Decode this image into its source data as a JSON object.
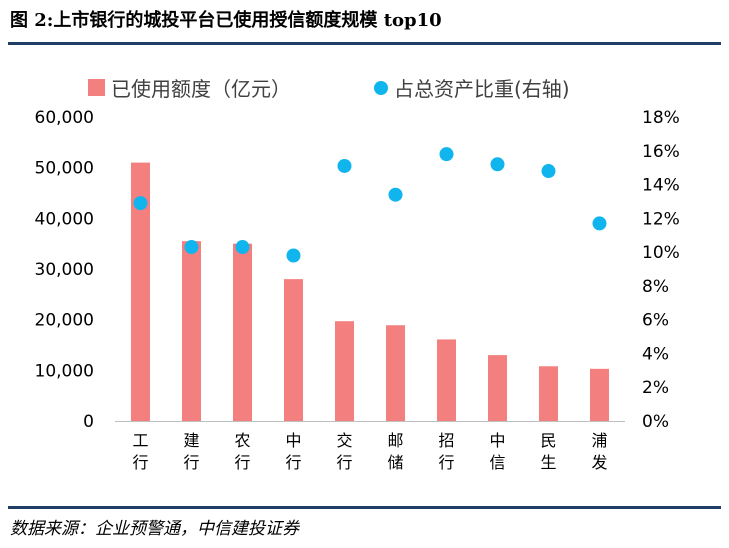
{
  "figure_title": "图 2:上市银行的城投平台已使用授信额度规模 top10",
  "source_note": "数据来源：企业预警通，中信建投证券",
  "colors": {
    "bar": "#f47f7f",
    "dot": "#11b5ee",
    "rule": "#1f3f66"
  },
  "chart_data": {
    "type": "bar",
    "title": "上市银行的城投平台已使用授信额度规模 top10",
    "categories": [
      "工行",
      "建行",
      "农行",
      "中行",
      "交行",
      "邮储",
      "招行",
      "中信",
      "民生",
      "浦发"
    ],
    "series": [
      {
        "name": "已使用额度（亿元）",
        "type": "bar",
        "axis": "left",
        "values": [
          51000,
          35500,
          35000,
          28000,
          19700,
          18900,
          16100,
          13000,
          10800,
          10300
        ]
      },
      {
        "name": "占总资产比重(右轴)",
        "type": "scatter",
        "axis": "right",
        "values": [
          12.9,
          10.3,
          10.3,
          9.8,
          15.1,
          13.4,
          15.8,
          15.2,
          14.8,
          11.7
        ]
      }
    ],
    "left_axis": {
      "ylim": [
        0,
        60000
      ],
      "ticks": [
        0,
        10000,
        20000,
        30000,
        40000,
        50000,
        60000
      ],
      "tick_labels": [
        "0",
        "10,000",
        "20,000",
        "30,000",
        "40,000",
        "50,000",
        "60,000"
      ]
    },
    "right_axis": {
      "ylim": [
        0,
        18
      ],
      "ticks": [
        0,
        2,
        4,
        6,
        8,
        10,
        12,
        14,
        16,
        18
      ],
      "tick_labels": [
        "0%",
        "2%",
        "4%",
        "6%",
        "8%",
        "10%",
        "12%",
        "14%",
        "16%",
        "18%"
      ]
    },
    "legend_position": "top",
    "grid": false
  }
}
